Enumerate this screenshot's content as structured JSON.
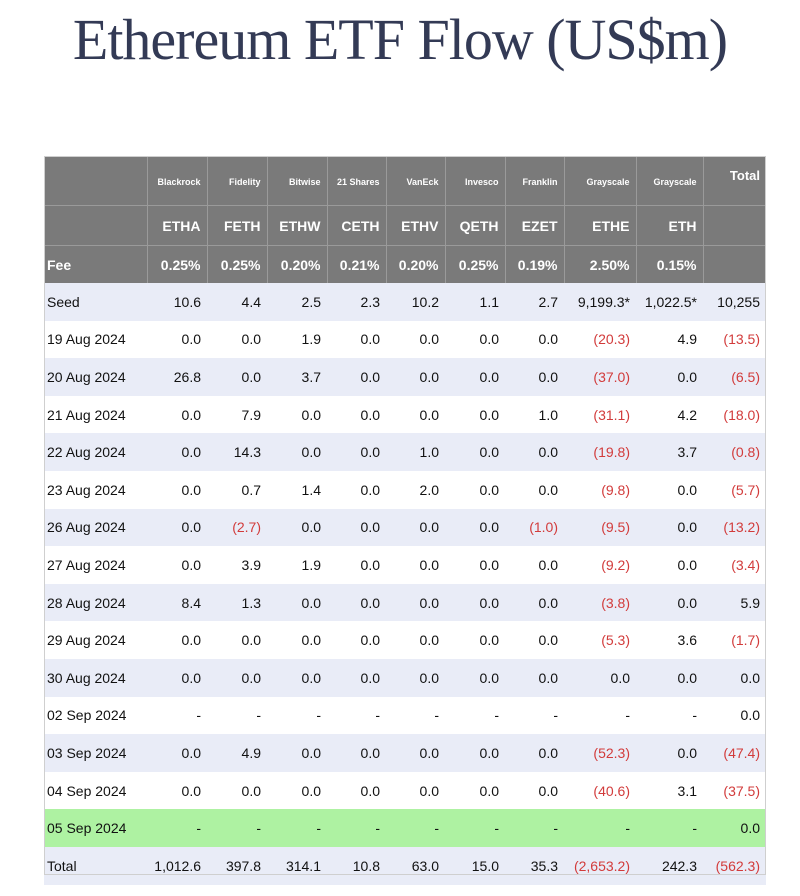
{
  "title": "Ethereum ETF Flow (US$m)",
  "colors": {
    "header_bg": "#7a7a7a",
    "alt_row": "#e9ecf7",
    "highlight_row": "#aef2a2",
    "negative": "#d23b3b",
    "title": "#333a55"
  },
  "table": {
    "issuers": [
      "Blackrock",
      "Fidelity",
      "Bitwise",
      "21 Shares",
      "VanEck",
      "Invesco",
      "Franklin",
      "Grayscale",
      "Grayscale",
      "Total"
    ],
    "tickers": [
      "ETHA",
      "FETH",
      "ETHW",
      "CETH",
      "ETHV",
      "QETH",
      "EZET",
      "ETHE",
      "ETH"
    ],
    "fee_label": "Fee",
    "fees": [
      "0.25%",
      "0.25%",
      "0.20%",
      "0.21%",
      "0.20%",
      "0.25%",
      "0.19%",
      "2.50%",
      "0.15%"
    ],
    "rows": [
      {
        "label": "Seed",
        "values": [
          "10.6",
          "4.4",
          "2.5",
          "2.3",
          "10.2",
          "1.1",
          "2.7",
          "9,199.3*",
          "1,022.5*",
          "10,255"
        ]
      },
      {
        "label": "19 Aug 2024",
        "values": [
          "0.0",
          "0.0",
          "1.9",
          "0.0",
          "0.0",
          "0.0",
          "0.0",
          "(20.3)",
          "4.9",
          "(13.5)"
        ]
      },
      {
        "label": "20 Aug 2024",
        "values": [
          "26.8",
          "0.0",
          "3.7",
          "0.0",
          "0.0",
          "0.0",
          "0.0",
          "(37.0)",
          "0.0",
          "(6.5)"
        ]
      },
      {
        "label": "21 Aug 2024",
        "values": [
          "0.0",
          "7.9",
          "0.0",
          "0.0",
          "0.0",
          "0.0",
          "1.0",
          "(31.1)",
          "4.2",
          "(18.0)"
        ]
      },
      {
        "label": "22 Aug 2024",
        "values": [
          "0.0",
          "14.3",
          "0.0",
          "0.0",
          "1.0",
          "0.0",
          "0.0",
          "(19.8)",
          "3.7",
          "(0.8)"
        ]
      },
      {
        "label": "23 Aug 2024",
        "values": [
          "0.0",
          "0.7",
          "1.4",
          "0.0",
          "2.0",
          "0.0",
          "0.0",
          "(9.8)",
          "0.0",
          "(5.7)"
        ]
      },
      {
        "label": "26 Aug 2024",
        "values": [
          "0.0",
          "(2.7)",
          "0.0",
          "0.0",
          "0.0",
          "0.0",
          "(1.0)",
          "(9.5)",
          "0.0",
          "(13.2)"
        ]
      },
      {
        "label": "27 Aug 2024",
        "values": [
          "0.0",
          "3.9",
          "1.9",
          "0.0",
          "0.0",
          "0.0",
          "0.0",
          "(9.2)",
          "0.0",
          "(3.4)"
        ]
      },
      {
        "label": "28 Aug 2024",
        "values": [
          "8.4",
          "1.3",
          "0.0",
          "0.0",
          "0.0",
          "0.0",
          "0.0",
          "(3.8)",
          "0.0",
          "5.9"
        ]
      },
      {
        "label": "29 Aug 2024",
        "values": [
          "0.0",
          "0.0",
          "0.0",
          "0.0",
          "0.0",
          "0.0",
          "0.0",
          "(5.3)",
          "3.6",
          "(1.7)"
        ]
      },
      {
        "label": "30 Aug 2024",
        "values": [
          "0.0",
          "0.0",
          "0.0",
          "0.0",
          "0.0",
          "0.0",
          "0.0",
          "0.0",
          "0.0",
          "0.0"
        ]
      },
      {
        "label": "02 Sep 2024",
        "values": [
          "-",
          "-",
          "-",
          "-",
          "-",
          "-",
          "-",
          "-",
          "-",
          "0.0"
        ]
      },
      {
        "label": "03 Sep 2024",
        "values": [
          "0.0",
          "4.9",
          "0.0",
          "0.0",
          "0.0",
          "0.0",
          "0.0",
          "(52.3)",
          "0.0",
          "(47.4)"
        ]
      },
      {
        "label": "04 Sep 2024",
        "values": [
          "0.0",
          "0.0",
          "0.0",
          "0.0",
          "0.0",
          "0.0",
          "0.0",
          "(40.6)",
          "3.1",
          "(37.5)"
        ]
      },
      {
        "label": "05 Sep 2024",
        "values": [
          "-",
          "-",
          "-",
          "-",
          "-",
          "-",
          "-",
          "-",
          "-",
          "0.0"
        ]
      },
      {
        "label": "Total",
        "values": [
          "1,012.6",
          "397.8",
          "314.1",
          "10.8",
          "63.0",
          "15.0",
          "35.3",
          "(2,653.2)",
          "242.3",
          "(562.3)"
        ]
      }
    ]
  }
}
